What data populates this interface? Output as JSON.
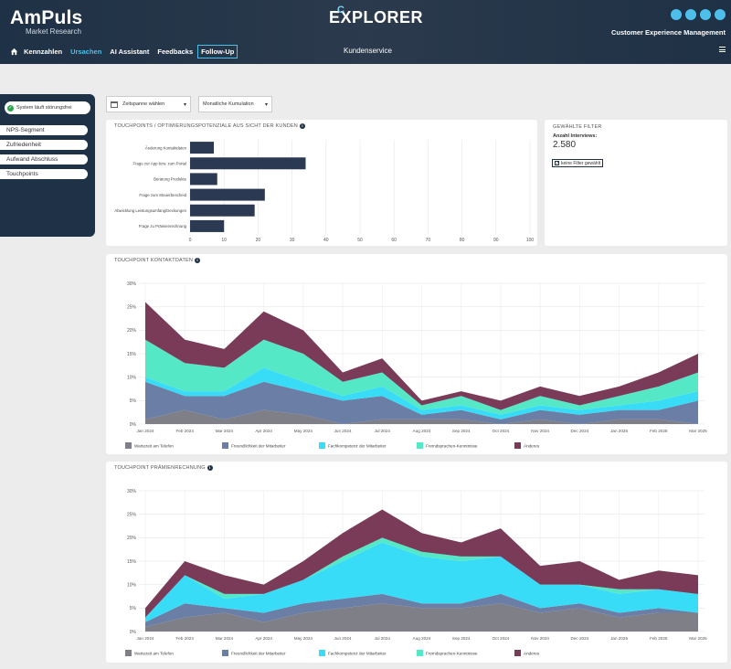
{
  "header": {
    "brand_name": "AmPuls",
    "brand_sub": "Market Research",
    "logo_text": "EXPLORER",
    "logo_c": "C",
    "cx_label": "Customer Experience Management",
    "page_subtitle": "Kundenservice"
  },
  "nav": {
    "items": [
      {
        "label": "Kennzahlen"
      },
      {
        "label": "Ursachen"
      },
      {
        "label": "AI Assistant"
      },
      {
        "label": "Feedbacks"
      },
      {
        "label": "Follow-Up"
      }
    ]
  },
  "sidebar": {
    "status": "System läuft störungsfrei",
    "items": [
      {
        "label": "NPS-Segment"
      },
      {
        "label": "Zufriedenheit"
      },
      {
        "label": "Aufwand Abschluss"
      },
      {
        "label": "Touchpoints"
      }
    ]
  },
  "toolbar": {
    "date_label": "Zeitspanne wählen",
    "select_value": "Monatliche Kumulation"
  },
  "filter": {
    "title": "GEWÄHLTE FILTER",
    "interviews_label": "Anzahl Interviews:",
    "interviews_value": "2.580",
    "chip": "keine Filter gewählt"
  },
  "colors": {
    "header_bg": "#1f3146",
    "accent": "#4cc0ea",
    "bar": "#2b3a52",
    "s1": "#7f7f87",
    "s2": "#6b7ea5",
    "s3": "#38dcf7",
    "s4": "#55e8c7",
    "s5": "#7a3b58"
  },
  "chart_data": [
    {
      "type": "bar",
      "title": "TOUCHPOINTS / OPTIMIERUNGSPOTENZIALE AUS SICHT DER KUNDEN",
      "orientation": "horizontal",
      "categories": [
        "Änderung Kontaktdaten",
        "Frage zur App bzw. zum Portal",
        "Beratung Produkte",
        "Frage zum Steuerbescheid",
        "Abwicklung Leistungsumfang/Deckungen",
        "Frage zu Prämienrechnung"
      ],
      "values": [
        7,
        34,
        8,
        22,
        19,
        10
      ],
      "xlim": [
        0,
        100
      ],
      "xticks": [
        "0",
        "10",
        "20",
        "30",
        "40",
        "50",
        "60",
        "70",
        "80",
        "90",
        "100"
      ]
    },
    {
      "type": "area",
      "title": "TOUCHPOINT KONTAKTDATEN",
      "stacked": true,
      "categories": [
        "Jan 2024",
        "Feb 2024",
        "Mar 2024",
        "Apr 2024",
        "May 2024",
        "Jun 2024",
        "Jul 2024",
        "Aug 2024",
        "Sep 2024",
        "Oct 2024",
        "Nov 2024",
        "Dec 2024",
        "Jan 2025",
        "Feb 2025",
        "Mar 2025"
      ],
      "yticks": [
        "0%",
        "5%",
        "10%",
        "15%",
        "20%",
        "25%",
        "30%"
      ],
      "ylim": [
        0,
        30
      ],
      "series": [
        {
          "name": "Wartezeit am Telefon",
          "values": [
            1,
            3,
            1,
            3,
            2,
            0,
            1,
            1,
            1,
            0,
            1,
            0,
            1,
            1,
            0
          ]
        },
        {
          "name": "Freundlichkeit der Mitarbeiter",
          "values": [
            8,
            3,
            5,
            6,
            5,
            5,
            5,
            1,
            2,
            1,
            2,
            2,
            2,
            2,
            5
          ]
        },
        {
          "name": "Fachkompetenz der Mitarbeiter",
          "values": [
            1,
            1,
            1,
            3,
            2,
            1,
            2,
            1,
            1,
            1,
            1,
            1,
            1,
            2,
            2
          ]
        },
        {
          "name": "Fremdsprachen-Kenntnisse",
          "values": [
            8,
            6,
            5,
            6,
            6,
            3,
            3,
            1,
            2,
            1,
            2,
            1,
            2,
            3,
            4
          ]
        },
        {
          "name": "Anderes",
          "values": [
            8,
            5,
            4,
            6,
            5,
            2,
            3,
            1,
            1,
            2,
            2,
            2,
            2,
            3,
            4
          ]
        }
      ]
    },
    {
      "type": "area",
      "title": "TOUCHPOINT PRÄMIENRECHNUNG",
      "stacked": true,
      "categories": [
        "Jan 2024",
        "Feb 2024",
        "Mar 2024",
        "Apr 2024",
        "May 2024",
        "Jun 2024",
        "Jul 2024",
        "Aug 2024",
        "Sep 2024",
        "Oct 2024",
        "Nov 2024",
        "Dec 2024",
        "Jan 2025",
        "Feb 2025",
        "Mar 2025"
      ],
      "yticks": [
        "0%",
        "5%",
        "10%",
        "15%",
        "20%",
        "25%",
        "30%"
      ],
      "ylim": [
        0,
        30
      ],
      "series": [
        {
          "name": "Wartezeit am Telefon",
          "values": [
            1,
            3,
            4,
            2,
            4,
            5,
            6,
            5,
            5,
            6,
            4,
            5,
            3,
            4,
            4
          ]
        },
        {
          "name": "Freundlichkeit der Mitarbeiter",
          "values": [
            1,
            3,
            1,
            2,
            2,
            2,
            2,
            1,
            1,
            2,
            1,
            1,
            1,
            1,
            0
          ]
        },
        {
          "name": "Fachkompetenz der Mitarbeiter",
          "values": [
            1,
            6,
            2,
            4,
            5,
            8,
            11,
            10,
            9,
            8,
            5,
            4,
            4,
            4,
            4
          ]
        },
        {
          "name": "Fremdsprachen-Kenntnisse",
          "values": [
            0,
            0,
            1,
            0,
            0,
            1,
            1,
            1,
            1,
            0,
            0,
            0,
            1,
            0,
            0
          ]
        },
        {
          "name": "Anderes",
          "values": [
            2,
            3,
            4,
            2,
            4,
            5,
            6,
            4,
            3,
            6,
            4,
            5,
            2,
            4,
            4
          ]
        }
      ]
    }
  ]
}
